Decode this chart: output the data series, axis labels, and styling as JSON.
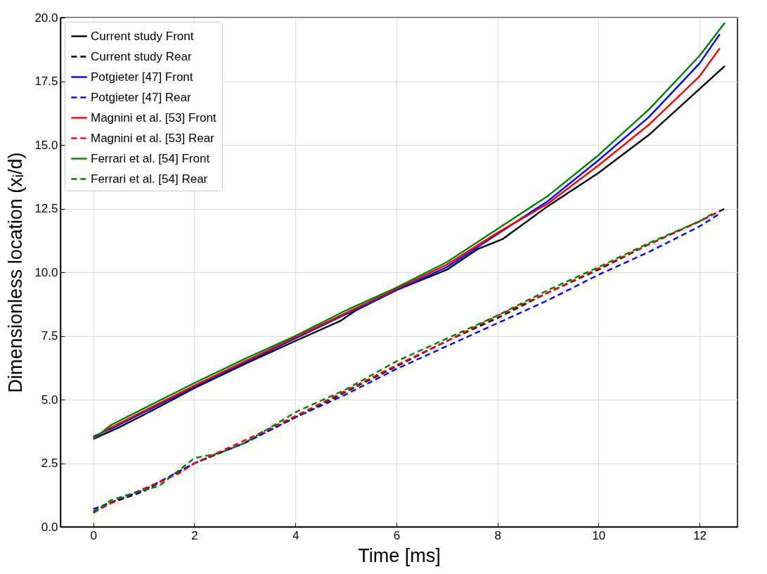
{
  "chart_data": {
    "type": "line",
    "xlabel": "Time [ms]",
    "ylabel": "Dimensionless location (xᵢ/d)",
    "xlim": [
      -0.65,
      12.75
    ],
    "ylim": [
      0,
      20
    ],
    "xticks": [
      0,
      2,
      4,
      6,
      8,
      10,
      12
    ],
    "yticks": [
      {
        "value": 0,
        "label": "0.0"
      },
      {
        "value": 2.5,
        "label": "2.5"
      },
      {
        "value": 5,
        "label": "5.0"
      },
      {
        "value": 7.5,
        "label": "7.5"
      },
      {
        "value": 10,
        "label": "10.0"
      },
      {
        "value": 12.5,
        "label": "12.5"
      },
      {
        "value": 15,
        "label": "15.0"
      },
      {
        "value": 17.5,
        "label": "17.5"
      },
      {
        "value": 20,
        "label": "20.0"
      }
    ],
    "grid": true,
    "legend": "top left",
    "series": [
      {
        "name": "Current study Front",
        "color": "#000000",
        "line_style": "solid",
        "x": [
          0,
          0.5,
          1,
          2,
          3,
          4,
          4.9,
          5.2,
          6,
          7,
          7.6,
          8.1,
          9,
          10,
          11,
          12,
          12.5
        ],
        "values": [
          3.45,
          3.9,
          4.4,
          5.45,
          6.4,
          7.3,
          8.1,
          8.5,
          9.3,
          10.1,
          10.9,
          11.3,
          12.6,
          13.9,
          15.4,
          17.2,
          18.1
        ]
      },
      {
        "name": "Current study Rear",
        "color": "#000000",
        "line_style": "dashed",
        "x": [
          0,
          0.3,
          1,
          2,
          3,
          4,
          5,
          6,
          7,
          8,
          9,
          10,
          11,
          12,
          12.5
        ],
        "values": [
          0.6,
          0.9,
          1.4,
          2.5,
          3.3,
          4.3,
          5.3,
          6.3,
          7.3,
          8.2,
          9.2,
          10.1,
          11.1,
          12.0,
          12.5
        ]
      },
      {
        "name": "Potgieter [47] Front",
        "color": "#0000ff",
        "line_style": "solid",
        "x": [
          0,
          0.35,
          1,
          2,
          3,
          4,
          5,
          6,
          7,
          8,
          9,
          10,
          11,
          12,
          12.4
        ],
        "values": [
          3.55,
          3.85,
          4.5,
          5.5,
          6.45,
          7.4,
          8.35,
          9.3,
          10.2,
          11.5,
          12.8,
          14.4,
          16.1,
          18.2,
          19.35
        ]
      },
      {
        "name": "Potgieter [47] Rear",
        "color": "#0000ff",
        "line_style": "dashed",
        "x": [
          0,
          1,
          2,
          3,
          4,
          5,
          6,
          7,
          8,
          9,
          10,
          11,
          12,
          12.4
        ],
        "values": [
          0.7,
          1.45,
          2.5,
          3.3,
          4.3,
          5.2,
          6.2,
          7.1,
          8.0,
          8.9,
          9.9,
          10.8,
          11.8,
          12.3
        ]
      },
      {
        "name": "Magnini et al. [53] Front",
        "color": "#ff0000",
        "line_style": "solid",
        "x": [
          0,
          0.35,
          1,
          2,
          3,
          4,
          5,
          6,
          7,
          8,
          9,
          10,
          11,
          12,
          12.4
        ],
        "values": [
          3.5,
          3.9,
          4.55,
          5.55,
          6.5,
          7.45,
          8.4,
          9.35,
          10.3,
          11.55,
          12.7,
          14.2,
          15.8,
          17.7,
          18.8
        ]
      },
      {
        "name": "Magnini et al. [53] Rear",
        "color": "#ff0000",
        "line_style": "dashed",
        "x": [
          0,
          0.5,
          1,
          1.7,
          2,
          3,
          4,
          5,
          6,
          7,
          8,
          9,
          10,
          11,
          12,
          12.4
        ],
        "values": [
          0.55,
          1.1,
          1.5,
          2.1,
          2.5,
          3.4,
          4.35,
          5.35,
          6.35,
          7.3,
          8.3,
          9.2,
          10.15,
          11.1,
          12.0,
          12.4
        ]
      },
      {
        "name": "Ferrari et al. [54] Front",
        "color": "#008000",
        "line_style": "solid",
        "x": [
          0,
          0.35,
          1,
          2,
          3,
          4,
          5,
          6,
          7,
          8,
          9,
          10,
          11,
          12,
          12.5
        ],
        "values": [
          3.45,
          4.0,
          4.65,
          5.65,
          6.6,
          7.5,
          8.5,
          9.4,
          10.4,
          11.7,
          13.0,
          14.6,
          16.4,
          18.5,
          19.8
        ]
      },
      {
        "name": "Ferrari et al. [54] Rear",
        "color": "#008000",
        "line_style": "dashed",
        "x": [
          0,
          0.35,
          1,
          1.3,
          2,
          2.5,
          3,
          4,
          5,
          6,
          7,
          8,
          9,
          10,
          11,
          12,
          12.3
        ],
        "values": [
          0.55,
          1.05,
          1.45,
          1.6,
          2.7,
          2.9,
          3.3,
          4.5,
          5.4,
          6.5,
          7.4,
          8.3,
          9.3,
          10.2,
          11.15,
          12.0,
          12.35
        ]
      }
    ]
  }
}
